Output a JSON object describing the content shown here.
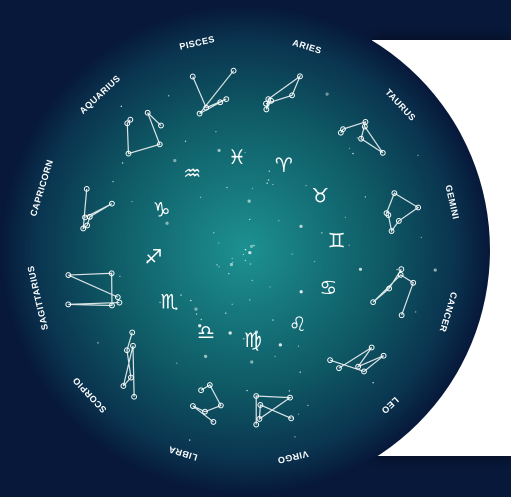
{
  "signs": [
    {
      "name": "ARIES",
      "symbol": "♈"
    },
    {
      "name": "TAURUS",
      "symbol": "♉"
    },
    {
      "name": "GEMINI",
      "symbol": "♊"
    },
    {
      "name": "CANCER",
      "symbol": "♋"
    },
    {
      "name": "LEO",
      "symbol": "♌"
    },
    {
      "name": "VIRGO",
      "symbol": "♍"
    },
    {
      "name": "LIBRA",
      "symbol": "♎"
    },
    {
      "name": "SCORPIO",
      "symbol": "♏"
    },
    {
      "name": "SAGITTARIUS",
      "symbol": "♐"
    },
    {
      "name": "CAPRICORN",
      "symbol": "♑"
    },
    {
      "name": "AQUARIUS",
      "symbol": "♒"
    },
    {
      "name": "PISCES",
      "symbol": "♓"
    }
  ]
}
